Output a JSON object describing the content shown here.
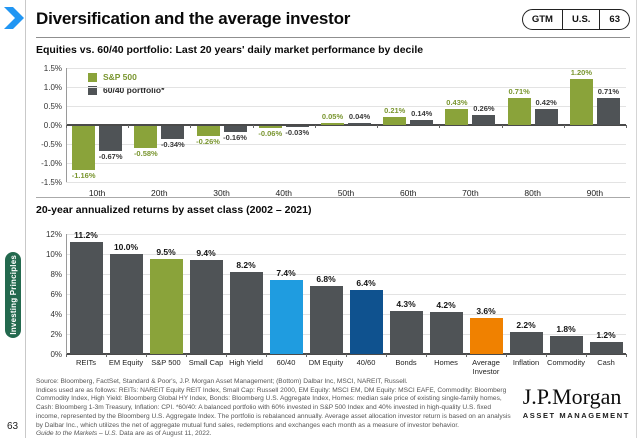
{
  "header": {
    "title": "Diversification and the average investor",
    "badge": {
      "gtm": "GTM",
      "region": "U.S.",
      "page": "63"
    }
  },
  "sidebar": {
    "tab_label": "Investing Principles",
    "page_number": "63"
  },
  "colors": {
    "sp500_green": "#8aa33a",
    "neutral_gray": "#4f5356",
    "light_blue": "#1f9ce0",
    "dark_blue": "#0f528f",
    "orange": "#f08100",
    "chevron_blue": "#2196f3",
    "principles_green": "#23694e"
  },
  "chart_data": [
    {
      "type": "bar",
      "title": "Equities vs. 60/40 portfolio: Last 20 years' daily market performance by decile",
      "categories": [
        "10th",
        "20th",
        "30th",
        "40th",
        "50th",
        "60th",
        "70th",
        "80th",
        "90th"
      ],
      "series": [
        {
          "name": "S&P 500",
          "color": "#8aa33a",
          "label_color": "#7a9630",
          "values": [
            -1.16,
            -0.58,
            -0.26,
            -0.06,
            0.05,
            0.21,
            0.43,
            0.71,
            1.2
          ]
        },
        {
          "name": "60/40 portfolio*",
          "color": "#4f5356",
          "label_color": "#3a3a3a",
          "values": [
            -0.67,
            -0.34,
            -0.16,
            -0.03,
            0.04,
            0.14,
            0.26,
            0.42,
            0.71
          ]
        }
      ],
      "ylim": [
        -1.5,
        1.5
      ],
      "yticks": [
        1.5,
        1.0,
        0.5,
        0.0,
        -0.5,
        -1.0,
        -1.5
      ],
      "grid": true,
      "legend_position": "top-left",
      "value_label_format": "0.00%"
    },
    {
      "type": "bar",
      "title": "20-year annualized returns by asset class (2002 – 2021)",
      "categories": [
        "REITs",
        "EM Equity",
        "S&P 500",
        "Small Cap",
        "High Yield",
        "60/40",
        "DM Equity",
        "40/60",
        "Bonds",
        "Homes",
        "Average\nInvestor",
        "Inflation",
        "Commodity",
        "Cash"
      ],
      "values": [
        11.2,
        10.0,
        9.5,
        9.4,
        8.2,
        7.4,
        6.8,
        6.4,
        4.3,
        4.2,
        3.6,
        2.2,
        1.8,
        1.2
      ],
      "bar_colors": [
        "#4f5356",
        "#4f5356",
        "#8aa33a",
        "#4f5356",
        "#4f5356",
        "#1f9ce0",
        "#4f5356",
        "#0f528f",
        "#4f5356",
        "#4f5356",
        "#f08100",
        "#4f5356",
        "#4f5356",
        "#4f5356"
      ],
      "ylim": [
        0,
        12
      ],
      "yticks": [
        12,
        10,
        8,
        6,
        4,
        2,
        0
      ],
      "grid": true,
      "value_label_format": "0.0%"
    }
  ],
  "footer": {
    "source_line": "Source: Bloomberg, FactSet, Standard & Poor's, J.P. Morgan Asset Management; (Bottom) Dalbar Inc, MSCI, NAREIT, Russell.",
    "indices_paragraph": "Indices used are as follows: REITs: NAREIT Equity REIT Index, Small Cap: Russell 2000, EM Equity: MSCI EM, DM Equity: MSCI EAFE, Commodity: Bloomberg Commodity Index, High Yield: Bloomberg Global HY Index, Bonds: Bloomberg U.S. Aggregate Index, Homes: median sale price of existing single-family homes, Cash: Bloomberg 1-3m Treasury, Inflation: CPI. *60/40: A balanced portfolio with 60% invested in S&P 500 Index and 40% invested in high-quality U.S. fixed income, represented by the Bloomberg U.S. Aggregate Index. The portfolio is rebalanced annually. Average asset allocation investor return is based on an analysis by Dalbar Inc., which utilizes the net of aggregate mutual fund sales, redemptions and exchanges each month as a measure of investor behavior.",
    "guide_italic": "Guide to the Markets – U.S.",
    "guide_rest": " Data are as of August 11, 2022.",
    "brand": {
      "name": "J.P.Morgan",
      "division": "ASSET MANAGEMENT"
    }
  }
}
